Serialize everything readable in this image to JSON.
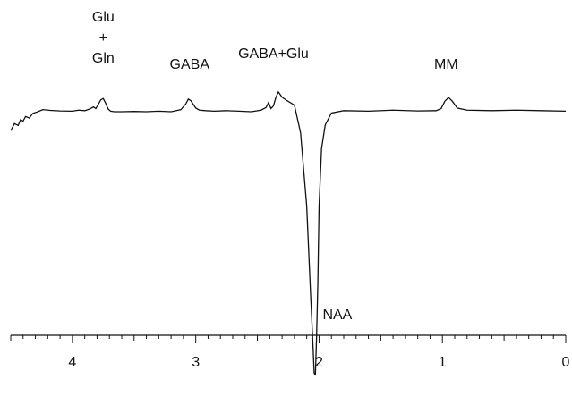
{
  "chart_data": {
    "type": "line",
    "title": "",
    "xlabel": "",
    "ylabel": "",
    "x_axis": {
      "direction": "reversed",
      "range": [
        4.5,
        0
      ],
      "major_ticks": [
        4,
        3,
        2,
        1,
        0
      ],
      "tick_labels": [
        "4",
        "3",
        "2",
        "1",
        "0"
      ],
      "minor_tick_step": 0.1
    },
    "y_axis": {
      "visible": false
    },
    "grid": false,
    "legend": "none",
    "line_color": "#111111",
    "series": [
      {
        "x": [
          4.5,
          4.47,
          4.44,
          4.42,
          4.4,
          4.38,
          4.35,
          4.32,
          4.28,
          4.24,
          4.18,
          4.1,
          4.0,
          3.95,
          3.9,
          3.86,
          3.83,
          3.81,
          3.79,
          3.77,
          3.75,
          3.73,
          3.71,
          3.69,
          3.66,
          3.6,
          3.5,
          3.4,
          3.3,
          3.2,
          3.12,
          3.08,
          3.06,
          3.04,
          3.02,
          3.0,
          2.97,
          2.92,
          2.85,
          2.75,
          2.65,
          2.55,
          2.47,
          2.43,
          2.41,
          2.39,
          2.37,
          2.35,
          2.33,
          2.3,
          2.26,
          2.2,
          2.15,
          2.1,
          2.07,
          2.05,
          2.04,
          2.03,
          2.02,
          2.01,
          2.0,
          1.98,
          1.95,
          1.9,
          1.8,
          1.6,
          1.4,
          1.2,
          1.05,
          1.01,
          0.98,
          0.95,
          0.92,
          0.88,
          0.8,
          0.6,
          0.4,
          0.2,
          0.0
        ],
        "values": [
          -0.72,
          -0.45,
          -0.52,
          -0.3,
          -0.36,
          -0.18,
          -0.24,
          -0.06,
          0.0,
          0.08,
          0.05,
          0.03,
          0.02,
          0.06,
          0.04,
          0.1,
          0.18,
          0.12,
          0.28,
          0.45,
          0.5,
          0.32,
          0.1,
          0.02,
          0.0,
          0.0,
          0.01,
          0.0,
          0.02,
          0.0,
          0.08,
          0.3,
          0.48,
          0.42,
          0.28,
          0.14,
          0.06,
          0.04,
          0.02,
          0.04,
          0.02,
          0.0,
          0.06,
          0.16,
          0.35,
          0.12,
          0.22,
          0.55,
          0.75,
          0.55,
          0.42,
          0.25,
          -0.8,
          -3.6,
          -6.8,
          -8.8,
          -9.9,
          -10.0,
          -8.5,
          -6.5,
          -3.6,
          -1.4,
          -0.5,
          -0.05,
          0.04,
          0.02,
          0.06,
          0.03,
          0.04,
          0.12,
          0.4,
          0.54,
          0.4,
          0.14,
          0.06,
          0.04,
          0.06,
          0.04,
          0.02
        ]
      }
    ],
    "annotations": [
      {
        "lines": [
          "Glu",
          "+",
          "Gln"
        ],
        "x": 3.75
      },
      {
        "lines": [
          "GABA"
        ],
        "x": 3.05
      },
      {
        "lines": [
          "GABA+Glu"
        ],
        "x": 2.37
      },
      {
        "lines": [
          "MM"
        ],
        "x": 0.97
      },
      {
        "lines": [
          "NAA"
        ],
        "x": 2.0
      }
    ]
  }
}
